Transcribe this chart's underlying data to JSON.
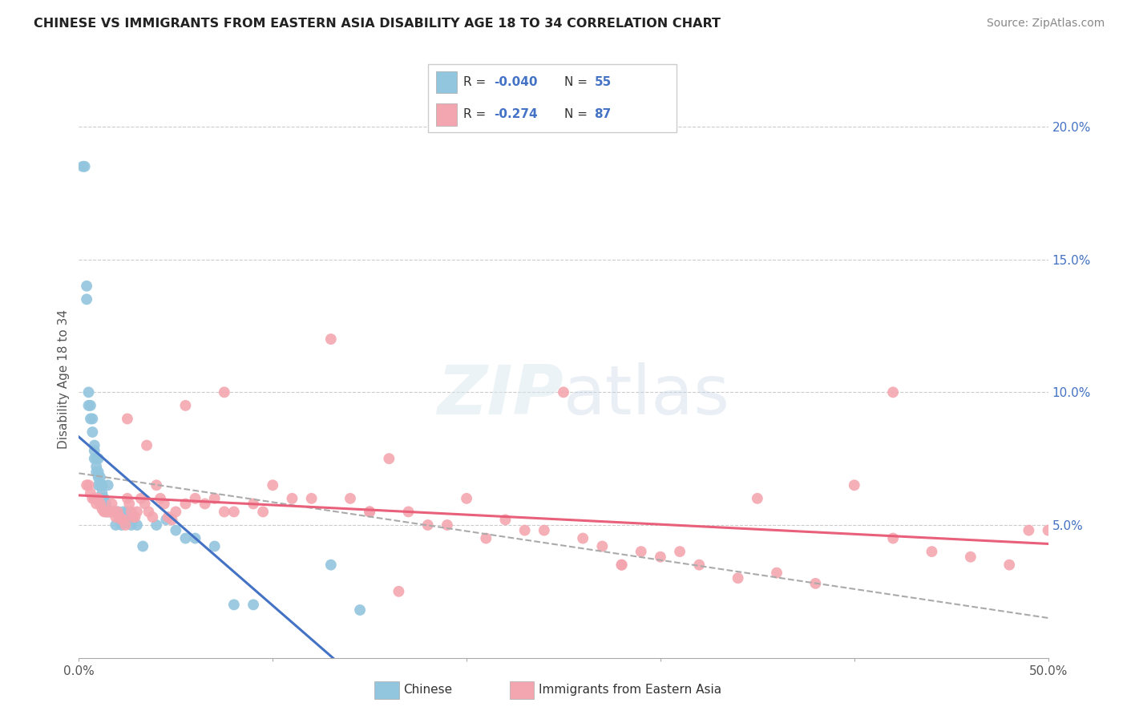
{
  "title": "CHINESE VS IMMIGRANTS FROM EASTERN ASIA DISABILITY AGE 18 TO 34 CORRELATION CHART",
  "source": "Source: ZipAtlas.com",
  "ylabel": "Disability Age 18 to 34",
  "xlim": [
    0.0,
    0.5
  ],
  "ylim": [
    0.0,
    0.21
  ],
  "xtick_positions": [
    0.0,
    0.1,
    0.2,
    0.3,
    0.4,
    0.5
  ],
  "xticklabels": [
    "0.0%",
    "",
    "",
    "",
    "",
    "50.0%"
  ],
  "yticks_right": [
    0.05,
    0.1,
    0.15,
    0.2
  ],
  "ytick_right_labels": [
    "5.0%",
    "10.0%",
    "15.0%",
    "20.0%"
  ],
  "color_chinese": "#92C5DE",
  "color_immigrants": "#F4A6B0",
  "color_trendline_chinese": "#4472C4",
  "color_trendline_immigrants": "#E8607A",
  "color_trendline_dashed": "#AAAAAA",
  "background_color": "#FFFFFF",
  "grid_color": "#CCCCCC",
  "chinese_x": [
    0.002,
    0.003,
    0.004,
    0.004,
    0.005,
    0.005,
    0.006,
    0.006,
    0.007,
    0.007,
    0.008,
    0.008,
    0.008,
    0.009,
    0.009,
    0.009,
    0.01,
    0.01,
    0.01,
    0.01,
    0.011,
    0.011,
    0.012,
    0.012,
    0.012,
    0.013,
    0.013,
    0.014,
    0.014,
    0.015,
    0.015,
    0.016,
    0.017,
    0.018,
    0.019,
    0.02,
    0.021,
    0.022,
    0.023,
    0.025,
    0.026,
    0.027,
    0.028,
    0.03,
    0.033,
    0.04,
    0.045,
    0.05,
    0.055,
    0.06,
    0.07,
    0.08,
    0.09,
    0.13,
    0.145
  ],
  "chinese_y": [
    0.185,
    0.185,
    0.14,
    0.135,
    0.095,
    0.1,
    0.095,
    0.09,
    0.085,
    0.09,
    0.08,
    0.078,
    0.075,
    0.075,
    0.072,
    0.07,
    0.068,
    0.07,
    0.065,
    0.075,
    0.065,
    0.068,
    0.062,
    0.065,
    0.06,
    0.06,
    0.058,
    0.058,
    0.055,
    0.055,
    0.065,
    0.055,
    0.055,
    0.055,
    0.05,
    0.055,
    0.052,
    0.05,
    0.055,
    0.055,
    0.053,
    0.05,
    0.052,
    0.05,
    0.042,
    0.05,
    0.052,
    0.048,
    0.045,
    0.045,
    0.042,
    0.02,
    0.02,
    0.035,
    0.018
  ],
  "immigrants_x": [
    0.004,
    0.005,
    0.006,
    0.007,
    0.008,
    0.009,
    0.01,
    0.011,
    0.012,
    0.013,
    0.014,
    0.015,
    0.016,
    0.017,
    0.018,
    0.019,
    0.02,
    0.021,
    0.022,
    0.023,
    0.024,
    0.025,
    0.026,
    0.027,
    0.028,
    0.029,
    0.03,
    0.032,
    0.034,
    0.036,
    0.038,
    0.04,
    0.042,
    0.044,
    0.046,
    0.048,
    0.05,
    0.055,
    0.06,
    0.065,
    0.07,
    0.075,
    0.08,
    0.09,
    0.1,
    0.11,
    0.12,
    0.13,
    0.14,
    0.15,
    0.16,
    0.17,
    0.18,
    0.19,
    0.2,
    0.21,
    0.22,
    0.23,
    0.24,
    0.25,
    0.26,
    0.27,
    0.28,
    0.29,
    0.3,
    0.31,
    0.32,
    0.34,
    0.36,
    0.38,
    0.4,
    0.42,
    0.44,
    0.46,
    0.48,
    0.49,
    0.5,
    0.025,
    0.035,
    0.055,
    0.075,
    0.095,
    0.15,
    0.28,
    0.35,
    0.42,
    0.165
  ],
  "immigrants_y": [
    0.065,
    0.065,
    0.062,
    0.06,
    0.06,
    0.058,
    0.06,
    0.058,
    0.056,
    0.055,
    0.055,
    0.055,
    0.055,
    0.058,
    0.055,
    0.053,
    0.055,
    0.053,
    0.052,
    0.052,
    0.05,
    0.06,
    0.058,
    0.055,
    0.053,
    0.053,
    0.055,
    0.06,
    0.058,
    0.055,
    0.053,
    0.065,
    0.06,
    0.058,
    0.053,
    0.052,
    0.055,
    0.058,
    0.06,
    0.058,
    0.06,
    0.055,
    0.055,
    0.058,
    0.065,
    0.06,
    0.06,
    0.12,
    0.06,
    0.055,
    0.075,
    0.055,
    0.05,
    0.05,
    0.06,
    0.045,
    0.052,
    0.048,
    0.048,
    0.1,
    0.045,
    0.042,
    0.035,
    0.04,
    0.038,
    0.04,
    0.035,
    0.03,
    0.032,
    0.028,
    0.065,
    0.045,
    0.04,
    0.038,
    0.035,
    0.048,
    0.048,
    0.09,
    0.08,
    0.095,
    0.1,
    0.055,
    0.055,
    0.035,
    0.06,
    0.1,
    0.025
  ]
}
